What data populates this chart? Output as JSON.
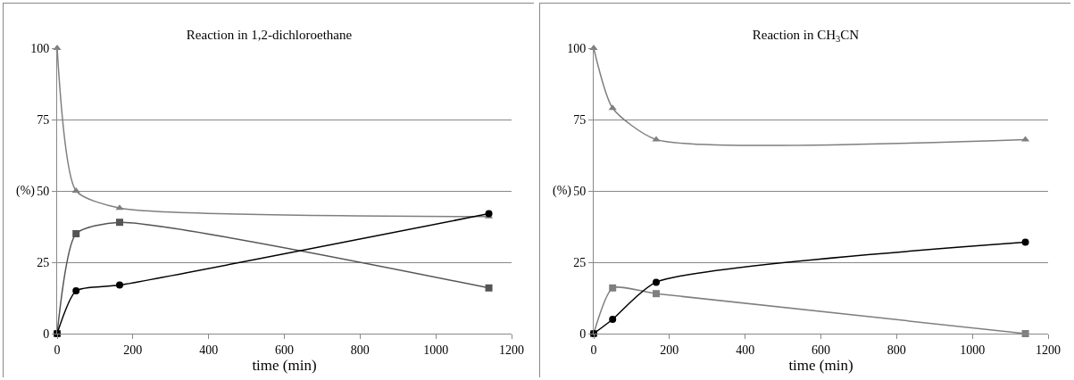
{
  "chart_data": [
    {
      "type": "line",
      "title": "Reaction in 1,2-dichloroethane",
      "xlabel": "time (min)",
      "ylabel": "(%)",
      "x": [
        0,
        50,
        165,
        1140
      ],
      "xlim": [
        0,
        1200
      ],
      "xticks": [
        0,
        200,
        400,
        600,
        800,
        1000,
        1200
      ],
      "ylim": [
        0,
        100
      ],
      "yticks": [
        0,
        25,
        50,
        75,
        100
      ],
      "grid": "y",
      "series": [
        {
          "color": "#7f7f7f",
          "marker": "triangle",
          "values": [
            100,
            50,
            44,
            41
          ]
        },
        {
          "color": "#555555",
          "marker": "square",
          "values": [
            0,
            35,
            39,
            16
          ]
        },
        {
          "color": "#000000",
          "marker": "circle",
          "values": [
            0,
            15,
            17,
            42
          ]
        }
      ]
    },
    {
      "type": "line",
      "title": "Reaction in CH$_{3}$CN",
      "xlabel": "time (min)",
      "ylabel": "(%)",
      "x": [
        0,
        50,
        165,
        1140
      ],
      "xlim": [
        0,
        1200
      ],
      "xticks": [
        0,
        200,
        400,
        600,
        800,
        1000,
        1200
      ],
      "ylim": [
        0,
        100
      ],
      "yticks": [
        0,
        25,
        50,
        75,
        100
      ],
      "grid": "y",
      "series": [
        {
          "color": "#7f7f7f",
          "marker": "triangle",
          "values": [
            100,
            79,
            68,
            68
          ]
        },
        {
          "color": "#7f7f7f",
          "marker": "square",
          "values": [
            0,
            16,
            14,
            0
          ]
        },
        {
          "color": "#000000",
          "marker": "circle",
          "values": [
            0,
            5,
            18,
            32
          ]
        }
      ]
    }
  ]
}
